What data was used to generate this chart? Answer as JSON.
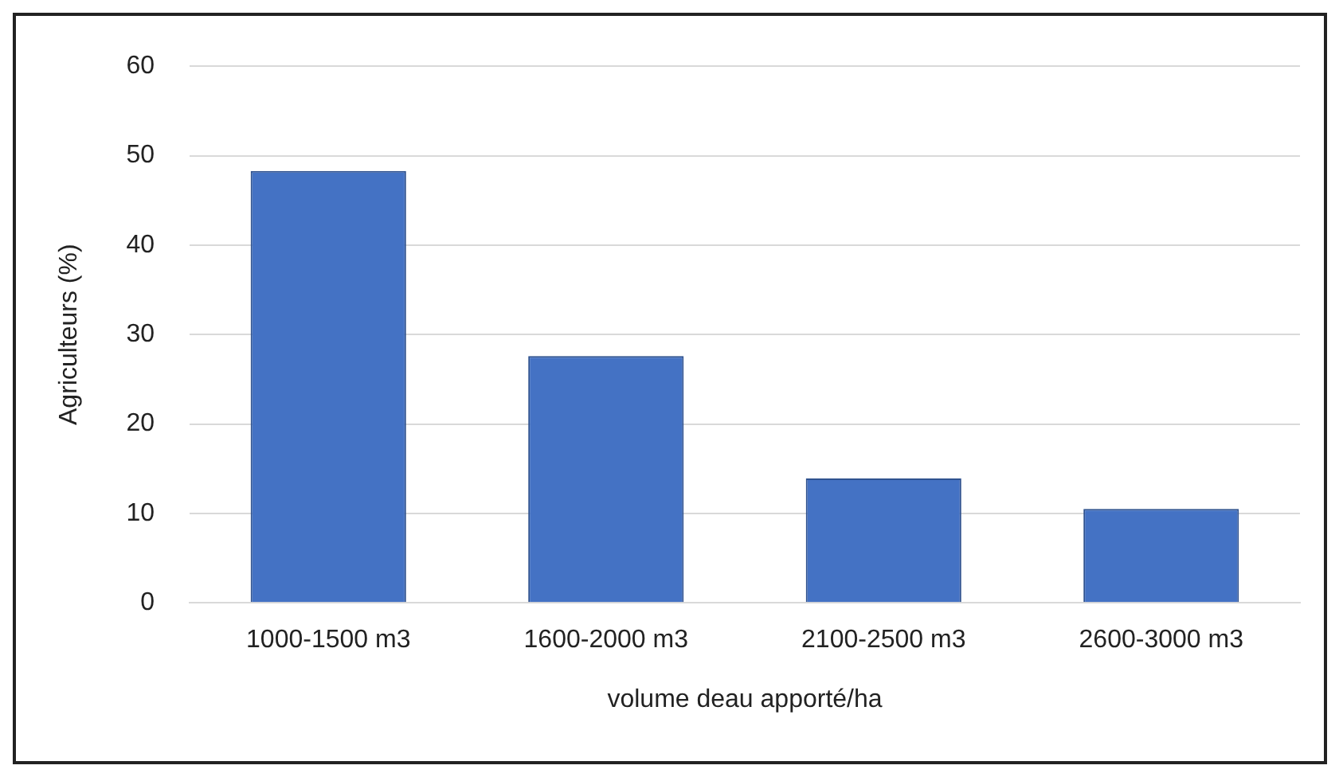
{
  "chart_data": {
    "type": "bar",
    "xlabel": "volume deau apporté/ha",
    "ylabel": "Agriculteurs (%)",
    "categories": [
      "1000-1500 m3",
      "1600-2000 m3",
      "2100-2500 m3",
      "2600-3000 m3"
    ],
    "values": [
      48.3,
      27.6,
      13.9,
      10.5
    ],
    "color": "#4472c4",
    "ylim": [
      0,
      60
    ],
    "yticks": [
      0,
      10,
      20,
      30,
      40,
      50,
      60
    ],
    "grid": "y"
  }
}
